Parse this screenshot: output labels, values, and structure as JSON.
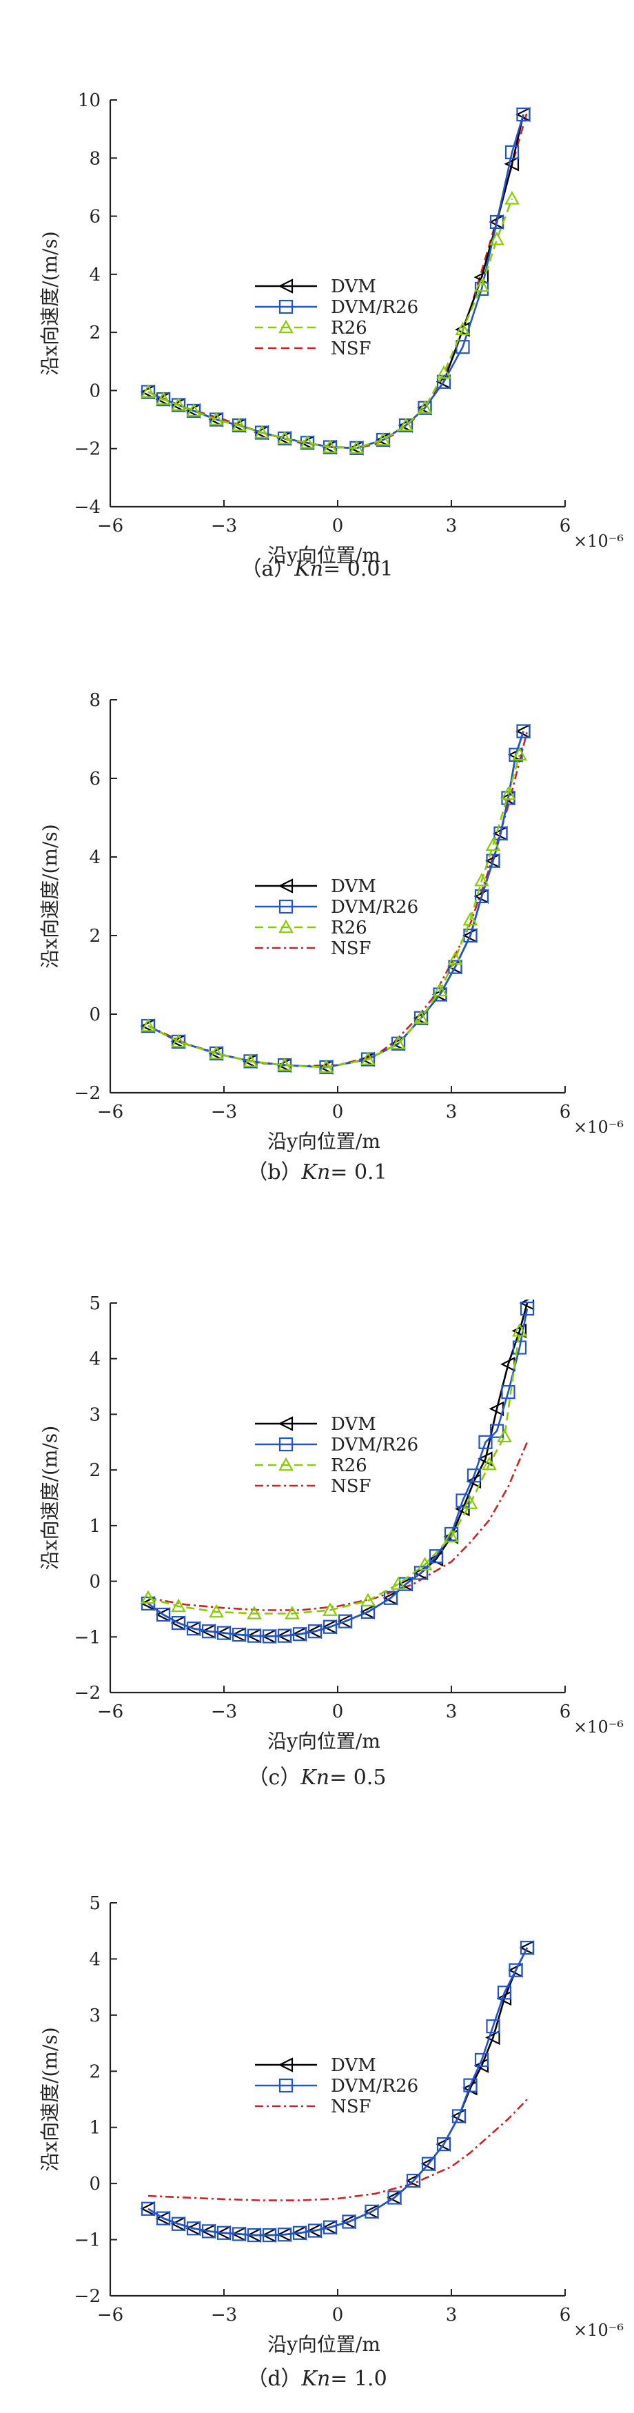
{
  "figure": {
    "panels": [
      {
        "caption": "（a）Kn = 0.01",
        "caption_prefix": "（a）",
        "kn_label": "Kn",
        "kn_value": "= 0.01"
      },
      {
        "caption": "（b）Kn = 0.1",
        "caption_prefix": "（b）",
        "kn_label": "Kn",
        "kn_value": "= 0.1"
      },
      {
        "caption": "（c）Kn = 0.5",
        "caption_prefix": "（c）",
        "kn_label": "Kn",
        "kn_value": "= 0.5"
      },
      {
        "caption": "（d）Kn = 1.0",
        "caption_prefix": "（d）",
        "kn_label": "Kn",
        "kn_value": "= 1.0"
      }
    ]
  },
  "chart_data": [
    {
      "type": "line",
      "xlabel": "沿y向位置/m",
      "ylabel": "沿x向速度/(m/s)",
      "x_scale_label": "×10⁻⁶",
      "xlim": [
        -6,
        6
      ],
      "ylim": [
        -4,
        10
      ],
      "xticks": [
        -6,
        -3,
        0,
        3,
        6
      ],
      "yticks": [
        -4,
        -2,
        0,
        2,
        4,
        6,
        8,
        10
      ],
      "grid": false,
      "legend_position": "center-left",
      "series": [
        {
          "name": "DVM",
          "color": "#000000",
          "marker": "triangle-left",
          "dash": "solid",
          "x": [
            -5.0,
            -4.6,
            -4.2,
            -3.8,
            -3.2,
            -2.6,
            -2.0,
            -1.4,
            -0.8,
            -0.2,
            0.5,
            1.2,
            1.8,
            2.3,
            2.8,
            3.3,
            3.8,
            4.2,
            4.6,
            4.9
          ],
          "y": [
            -0.05,
            -0.3,
            -0.5,
            -0.7,
            -1.0,
            -1.2,
            -1.45,
            -1.65,
            -1.8,
            -1.95,
            -1.98,
            -1.7,
            -1.2,
            -0.6,
            0.3,
            2.1,
            3.9,
            5.8,
            7.8,
            9.5
          ]
        },
        {
          "name": "DVM/R26",
          "color": "#2255cc",
          "marker": "square",
          "dash": "solid",
          "x": [
            -5.0,
            -4.6,
            -4.2,
            -3.8,
            -3.2,
            -2.6,
            -2.0,
            -1.4,
            -0.8,
            -0.2,
            0.5,
            1.2,
            1.8,
            2.3,
            2.8,
            3.3,
            3.8,
            4.2,
            4.6,
            4.9
          ],
          "y": [
            -0.05,
            -0.3,
            -0.5,
            -0.7,
            -1.0,
            -1.2,
            -1.45,
            -1.65,
            -1.8,
            -1.95,
            -1.98,
            -1.7,
            -1.2,
            -0.6,
            0.3,
            1.5,
            3.5,
            5.8,
            8.2,
            9.5
          ]
        },
        {
          "name": "R26",
          "color": "#88cc00",
          "marker": "triangle-up",
          "dash": "dash",
          "x": [
            -5.0,
            -4.6,
            -4.2,
            -3.8,
            -3.2,
            -2.6,
            -2.0,
            -1.4,
            -0.8,
            -0.2,
            0.5,
            1.2,
            1.8,
            2.3,
            2.8,
            3.3,
            3.8,
            4.2,
            4.6
          ],
          "y": [
            -0.05,
            -0.3,
            -0.5,
            -0.7,
            -1.0,
            -1.2,
            -1.45,
            -1.65,
            -1.8,
            -1.95,
            -1.98,
            -1.7,
            -1.2,
            -0.6,
            0.6,
            2.1,
            3.6,
            5.2,
            6.6
          ]
        },
        {
          "name": "NSF",
          "color": "#cc2222",
          "marker": "none",
          "dash": "dash",
          "x": [
            -5.0,
            -4.0,
            -3.0,
            -2.0,
            -1.0,
            0.0,
            0.5,
            1.0,
            1.5,
            2.0,
            2.5,
            3.0,
            3.5,
            4.0,
            4.5,
            5.0
          ],
          "y": [
            -0.05,
            -0.6,
            -1.0,
            -1.45,
            -1.8,
            -1.95,
            -1.98,
            -1.85,
            -1.5,
            -1.0,
            -0.2,
            1.0,
            2.8,
            5.0,
            7.3,
            9.6
          ]
        }
      ]
    },
    {
      "type": "line",
      "xlabel": "沿y向位置/m",
      "ylabel": "沿x向速度/(m/s)",
      "x_scale_label": "×10⁻⁶",
      "xlim": [
        -6,
        6
      ],
      "ylim": [
        -2,
        8
      ],
      "xticks": [
        -6,
        -3,
        0,
        3,
        6
      ],
      "yticks": [
        -2,
        0,
        2,
        4,
        6,
        8
      ],
      "grid": false,
      "legend_position": "center-left",
      "series": [
        {
          "name": "DVM",
          "color": "#000000",
          "marker": "triangle-left",
          "dash": "solid",
          "x": [
            -5.0,
            -4.2,
            -3.2,
            -2.3,
            -1.4,
            -0.3,
            0.8,
            1.6,
            2.2,
            2.7,
            3.1,
            3.5,
            3.8,
            4.1,
            4.3,
            4.5,
            4.7,
            4.9
          ],
          "y": [
            -0.3,
            -0.7,
            -1.0,
            -1.2,
            -1.3,
            -1.35,
            -1.15,
            -0.75,
            -0.1,
            0.5,
            1.2,
            2.0,
            3.0,
            3.9,
            4.6,
            5.5,
            6.6,
            7.2
          ]
        },
        {
          "name": "DVM/R26",
          "color": "#2255cc",
          "marker": "square",
          "dash": "solid",
          "x": [
            -5.0,
            -4.2,
            -3.2,
            -2.3,
            -1.4,
            -0.3,
            0.8,
            1.6,
            2.2,
            2.7,
            3.1,
            3.5,
            3.8,
            4.1,
            4.3,
            4.5,
            4.7,
            4.9
          ],
          "y": [
            -0.3,
            -0.7,
            -1.0,
            -1.2,
            -1.3,
            -1.35,
            -1.15,
            -0.75,
            -0.1,
            0.5,
            1.2,
            2.0,
            3.0,
            3.9,
            4.6,
            5.5,
            6.6,
            7.2
          ]
        },
        {
          "name": "R26",
          "color": "#88cc00",
          "marker": "triangle-up",
          "dash": "dash",
          "x": [
            -5.0,
            -4.2,
            -3.2,
            -2.3,
            -1.4,
            -0.3,
            0.8,
            1.6,
            2.2,
            2.7,
            3.1,
            3.5,
            3.8,
            4.1,
            4.5,
            4.8
          ],
          "y": [
            -0.3,
            -0.7,
            -1.0,
            -1.2,
            -1.3,
            -1.35,
            -1.15,
            -0.75,
            -0.1,
            0.6,
            1.4,
            2.4,
            3.4,
            4.3,
            5.6,
            6.6
          ]
        },
        {
          "name": "NSF",
          "color": "#cc2222",
          "marker": "none",
          "dash": "dashdot",
          "x": [
            -5.0,
            -4.0,
            -3.0,
            -2.0,
            -1.0,
            0.0,
            1.0,
            1.5,
            2.0,
            2.5,
            3.0,
            3.5,
            4.0,
            4.5,
            5.0
          ],
          "y": [
            -0.3,
            -0.75,
            -1.05,
            -1.25,
            -1.32,
            -1.3,
            -1.05,
            -0.7,
            -0.2,
            0.4,
            1.3,
            2.3,
            3.7,
            5.3,
            7.2
          ]
        }
      ]
    },
    {
      "type": "line",
      "xlabel": "沿y向位置/m",
      "ylabel": "沿x向速度/(m/s)",
      "x_scale_label": "×10⁻⁶",
      "xlim": [
        -6,
        6
      ],
      "ylim": [
        -2,
        5
      ],
      "xticks": [
        -6,
        -3,
        0,
        3,
        6
      ],
      "yticks": [
        -2,
        -1,
        0,
        1,
        2,
        3,
        4,
        5
      ],
      "grid": false,
      "legend_position": "center-left",
      "series": [
        {
          "name": "DVM",
          "color": "#000000",
          "marker": "triangle-left",
          "dash": "solid",
          "x": [
            -5.0,
            -4.6,
            -4.2,
            -3.8,
            -3.4,
            -3.0,
            -2.6,
            -2.2,
            -1.8,
            -1.4,
            -1.0,
            -0.6,
            -0.2,
            0.2,
            0.8,
            1.4,
            1.8,
            2.2,
            2.6,
            3.0,
            3.3,
            3.6,
            3.9,
            4.2,
            4.5,
            4.8,
            5.0
          ],
          "y": [
            -0.4,
            -0.6,
            -0.75,
            -0.85,
            -0.9,
            -0.93,
            -0.96,
            -0.98,
            -0.99,
            -0.98,
            -0.95,
            -0.9,
            -0.82,
            -0.72,
            -0.55,
            -0.3,
            -0.05,
            0.15,
            0.4,
            0.8,
            1.3,
            1.8,
            2.2,
            3.1,
            3.9,
            4.5,
            5.0
          ]
        },
        {
          "name": "DVM/R26",
          "color": "#2255cc",
          "marker": "square",
          "dash": "solid",
          "x": [
            -5.0,
            -4.6,
            -4.2,
            -3.8,
            -3.4,
            -3.0,
            -2.6,
            -2.2,
            -1.8,
            -1.4,
            -1.0,
            -0.6,
            -0.2,
            0.2,
            0.8,
            1.4,
            1.8,
            2.2,
            2.6,
            3.0,
            3.3,
            3.6,
            3.9,
            4.2,
            4.5,
            4.8,
            5.0
          ],
          "y": [
            -0.4,
            -0.6,
            -0.75,
            -0.85,
            -0.9,
            -0.93,
            -0.96,
            -0.98,
            -0.99,
            -0.98,
            -0.95,
            -0.9,
            -0.82,
            -0.72,
            -0.55,
            -0.3,
            -0.05,
            0.15,
            0.45,
            0.85,
            1.45,
            1.9,
            2.5,
            2.7,
            3.4,
            4.2,
            4.9
          ]
        },
        {
          "name": "R26",
          "color": "#88cc00",
          "marker": "triangle-up",
          "dash": "dash",
          "x": [
            -5.0,
            -4.2,
            -3.2,
            -2.2,
            -1.2,
            -0.2,
            0.8,
            1.6,
            2.3,
            3.0,
            3.5,
            4.0,
            4.4,
            4.8
          ],
          "y": [
            -0.3,
            -0.45,
            -0.55,
            -0.58,
            -0.58,
            -0.52,
            -0.35,
            -0.05,
            0.3,
            0.8,
            1.4,
            2.1,
            2.6,
            4.5
          ]
        },
        {
          "name": "NSF",
          "color": "#cc2222",
          "marker": "none",
          "dash": "dashdot",
          "x": [
            -5.0,
            -4.0,
            -3.0,
            -2.0,
            -1.0,
            0.0,
            1.0,
            2.0,
            3.0,
            3.5,
            4.0,
            4.5,
            5.0
          ],
          "y": [
            -0.3,
            -0.42,
            -0.48,
            -0.52,
            -0.52,
            -0.45,
            -0.3,
            -0.05,
            0.35,
            0.7,
            1.1,
            1.7,
            2.5
          ]
        }
      ]
    },
    {
      "type": "line",
      "xlabel": "沿y向位置/m",
      "ylabel": "沿x向速度/(m/s)",
      "x_scale_label": "×10⁻⁶",
      "xlim": [
        -6,
        6
      ],
      "ylim": [
        -2,
        5
      ],
      "xticks": [
        -6,
        -3,
        0,
        3,
        6
      ],
      "yticks": [
        -2,
        -1,
        0,
        1,
        2,
        3,
        4,
        5
      ],
      "grid": false,
      "legend_position": "center-left",
      "series": [
        {
          "name": "DVM",
          "color": "#000000",
          "marker": "triangle-left",
          "dash": "solid",
          "x": [
            -5.0,
            -4.6,
            -4.2,
            -3.8,
            -3.4,
            -3.0,
            -2.6,
            -2.2,
            -1.8,
            -1.4,
            -1.0,
            -0.6,
            -0.2,
            0.3,
            0.9,
            1.5,
            2.0,
            2.4,
            2.8,
            3.2,
            3.5,
            3.8,
            4.1,
            4.4,
            4.7,
            5.0
          ],
          "y": [
            -0.45,
            -0.62,
            -0.72,
            -0.8,
            -0.85,
            -0.88,
            -0.9,
            -0.92,
            -0.92,
            -0.91,
            -0.88,
            -0.84,
            -0.78,
            -0.68,
            -0.5,
            -0.25,
            0.05,
            0.35,
            0.7,
            1.2,
            1.7,
            2.1,
            2.6,
            3.3,
            3.8,
            4.2
          ]
        },
        {
          "name": "DVM/R26",
          "color": "#2255cc",
          "marker": "square",
          "dash": "solid",
          "x": [
            -5.0,
            -4.6,
            -4.2,
            -3.8,
            -3.4,
            -3.0,
            -2.6,
            -2.2,
            -1.8,
            -1.4,
            -1.0,
            -0.6,
            -0.2,
            0.3,
            0.9,
            1.5,
            2.0,
            2.4,
            2.8,
            3.2,
            3.5,
            3.8,
            4.1,
            4.4,
            4.7,
            5.0
          ],
          "y": [
            -0.45,
            -0.62,
            -0.72,
            -0.8,
            -0.85,
            -0.88,
            -0.9,
            -0.92,
            -0.92,
            -0.91,
            -0.88,
            -0.84,
            -0.78,
            -0.68,
            -0.5,
            -0.25,
            0.05,
            0.35,
            0.7,
            1.2,
            1.75,
            2.2,
            2.8,
            3.4,
            3.8,
            4.2
          ]
        },
        {
          "name": "NSF",
          "color": "#cc2222",
          "marker": "none",
          "dash": "dashdot",
          "x": [
            -5.0,
            -4.0,
            -3.0,
            -2.0,
            -1.0,
            0.0,
            1.0,
            2.0,
            3.0,
            3.5,
            4.0,
            4.5,
            5.0
          ],
          "y": [
            -0.22,
            -0.25,
            -0.28,
            -0.3,
            -0.3,
            -0.27,
            -0.18,
            0.0,
            0.3,
            0.55,
            0.85,
            1.15,
            1.5
          ]
        }
      ]
    }
  ]
}
